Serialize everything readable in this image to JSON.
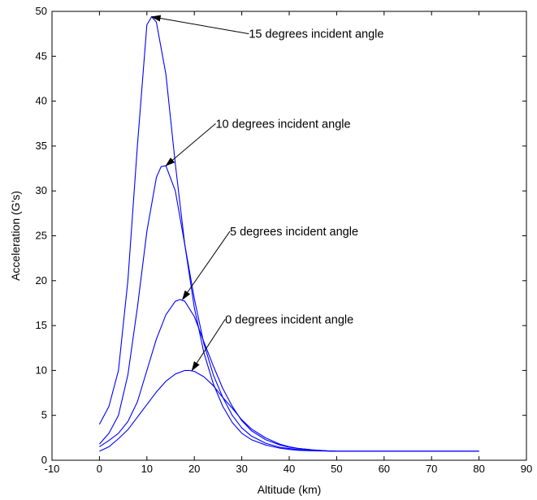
{
  "chart_data": {
    "type": "line",
    "title": "",
    "xlabel": "Altitude (km)",
    "ylabel": "Acceleration (G's)",
    "xlim": [
      -10,
      90
    ],
    "ylim": [
      0,
      50
    ],
    "xticks": [
      -10,
      0,
      10,
      20,
      30,
      40,
      50,
      60,
      70,
      80,
      90
    ],
    "yticks": [
      0,
      5,
      10,
      15,
      20,
      25,
      30,
      35,
      40,
      45,
      50
    ],
    "grid": false,
    "legend": "none",
    "line_color": "#0000ff",
    "series": [
      {
        "x": [
          0,
          2,
          4,
          6,
          8,
          10,
          11,
          12,
          14,
          16,
          18,
          20,
          22,
          24,
          26,
          28,
          30,
          32,
          35,
          38,
          40,
          42,
          45,
          48,
          50,
          60,
          70,
          80
        ],
        "y": [
          4,
          6,
          10,
          20,
          35,
          48.5,
          49.4,
          48.8,
          43,
          33,
          24,
          17,
          12,
          8.5,
          6,
          4.2,
          3,
          2.3,
          1.7,
          1.35,
          1.2,
          1.1,
          1.05,
          1.02,
          1,
          1,
          1,
          1
        ]
      },
      {
        "x": [
          0,
          2,
          4,
          6,
          8,
          10,
          12,
          13,
          14,
          16,
          18,
          20,
          22,
          24,
          26,
          28,
          30,
          32,
          35,
          38,
          40,
          42,
          45,
          48,
          50,
          60,
          70,
          80
        ],
        "y": [
          1.8,
          3,
          5,
          9.5,
          17,
          25.5,
          31.5,
          32.7,
          32.8,
          30,
          24,
          18,
          13,
          9.5,
          7,
          5,
          3.6,
          2.7,
          1.9,
          1.45,
          1.3,
          1.18,
          1.08,
          1.03,
          1,
          1,
          1,
          1
        ]
      },
      {
        "x": [
          0,
          2,
          4,
          6,
          8,
          10,
          12,
          14,
          16,
          17,
          18,
          20,
          22,
          24,
          26,
          28,
          30,
          32,
          35,
          38,
          40,
          42,
          45,
          48,
          50,
          60,
          70,
          80
        ],
        "y": [
          1.5,
          2.2,
          3,
          4.3,
          6.5,
          10,
          13.5,
          16.2,
          17.7,
          17.9,
          17.7,
          16,
          13.2,
          10.5,
          8,
          6,
          4.4,
          3.3,
          2.3,
          1.7,
          1.45,
          1.3,
          1.15,
          1.05,
          1,
          1,
          1,
          1
        ]
      },
      {
        "x": [
          0,
          2,
          4,
          6,
          8,
          10,
          12,
          14,
          16,
          18,
          19,
          20,
          22,
          24,
          26,
          28,
          30,
          32,
          35,
          38,
          40,
          42,
          45,
          48,
          50,
          60,
          70,
          80
        ],
        "y": [
          1,
          1.5,
          2.4,
          3.4,
          4.8,
          6.2,
          7.6,
          8.8,
          9.6,
          10,
          10,
          9.9,
          9.3,
          8.3,
          7,
          5.8,
          4.5,
          3.5,
          2.5,
          1.8,
          1.5,
          1.3,
          1.15,
          1.05,
          1,
          1,
          1,
          1
        ]
      }
    ],
    "annotations": [
      {
        "text": "15 degrees incident angle",
        "point": [
          11,
          49.4
        ],
        "text_at": [
          31.5,
          47.5
        ]
      },
      {
        "text": "10 degrees incident angle",
        "point": [
          14,
          32.8
        ],
        "text_at": [
          24.5,
          37.5
        ]
      },
      {
        "text": "5 degrees incident angle",
        "point": [
          17.5,
          17.9
        ],
        "text_at": [
          27.5,
          25.5
        ]
      },
      {
        "text": "0 degrees incident angle",
        "point": [
          19.5,
          10
        ],
        "text_at": [
          26.5,
          15.7
        ]
      }
    ]
  }
}
